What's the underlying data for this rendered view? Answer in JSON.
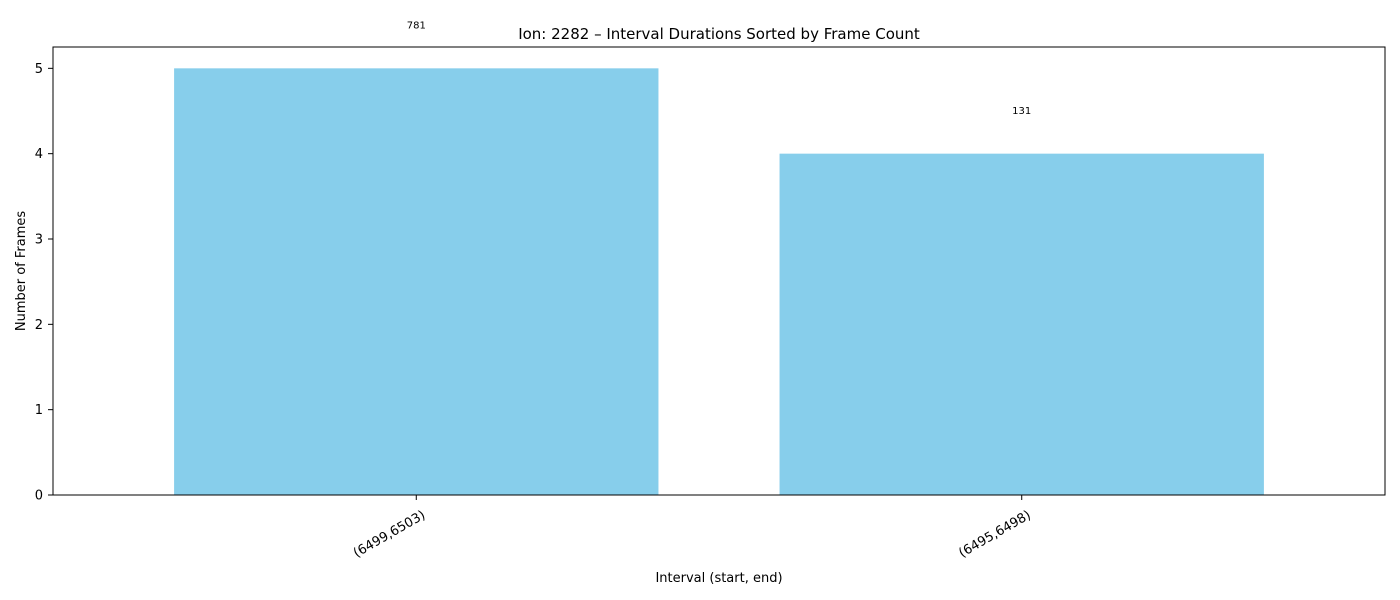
{
  "chart_data": {
    "type": "bar",
    "title": "Ion: 2282 – Interval Durations Sorted by Frame Count",
    "xlabel": "Interval (start, end)",
    "ylabel": "Number of Frames",
    "categories": [
      "(6499,6503)",
      "(6495,6498)"
    ],
    "values": [
      5,
      4
    ],
    "data_labels": [
      "781",
      "131"
    ],
    "ylim": [
      0,
      5.25
    ],
    "yticks": [
      0,
      1,
      2,
      3,
      4,
      5
    ],
    "grid": false,
    "bar_color": "#87CEEB"
  }
}
